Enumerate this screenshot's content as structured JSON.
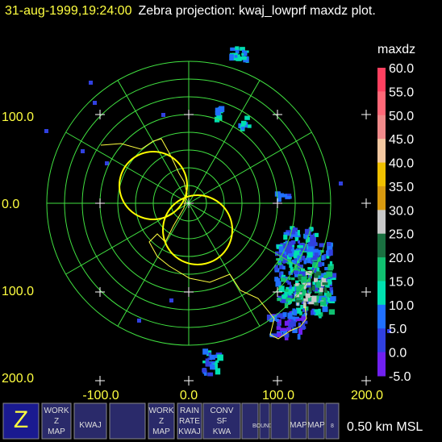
{
  "header": {
    "timestamp": "31-aug-1999,19:24:00",
    "description": "Zebra projection: kwaj_lowprf maxdz plot."
  },
  "plot": {
    "y_labels": [
      "100.0",
      "0.0",
      "100.0",
      "200.0"
    ],
    "x_labels": [
      "-100.0",
      "0.0",
      "100.0",
      "200.0"
    ]
  },
  "colorbar": {
    "title": "maxdz",
    "labels": [
      "60.0",
      "55.0",
      "50.0",
      "45.0",
      "40.0",
      "35.0",
      "30.0",
      "25.0",
      "20.0",
      "15.0",
      "10.0",
      "5.0",
      "0.0",
      "-5.0"
    ],
    "colors": [
      "#ff4060",
      "#ff6878",
      "#f08a8a",
      "#f4c8a0",
      "#f0c000",
      "#d89a10",
      "#c8c8c8",
      "#1a7040",
      "#10c070",
      "#00e0b0",
      "#2070ff",
      "#3040e0",
      "#7020f0"
    ]
  },
  "toolbar": {
    "icons": [
      {
        "lines": [
          "Z"
        ]
      },
      {
        "lines": [
          "WORK",
          "Z",
          "MAP"
        ]
      },
      {
        "lines": [
          "KWAJ"
        ]
      },
      {
        "lines": []
      },
      {
        "lines": [
          "WORK",
          "Z",
          "MAP"
        ]
      },
      {
        "lines": [
          "RAIN",
          "RATE",
          "KWAJ"
        ]
      },
      {
        "lines": [
          "CONV",
          "SF",
          "KWA"
        ]
      },
      {
        "lines": []
      },
      {
        "lines": [
          "BOUNDS"
        ]
      },
      {
        "lines": []
      },
      {
        "lines": [
          "MAP"
        ]
      },
      {
        "lines": [
          "MAP"
        ]
      },
      {
        "lines": [
          "8"
        ]
      }
    ],
    "altitude": "0.50 km MSL"
  }
}
